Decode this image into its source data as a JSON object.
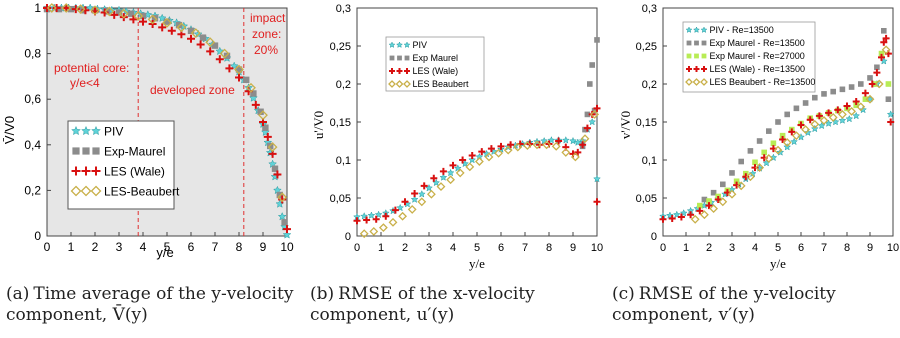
{
  "colors": {
    "piv": "#5fd3d8",
    "exp": "#8c8c8c",
    "exp27": "#b8ec55",
    "les": "#d81010",
    "beau": "#c9b04a",
    "zone_text": "#e02020",
    "zone_line": "#e03030",
    "panel_bg_a": "#e6e6e6"
  },
  "captions": [
    {
      "label": "(a)",
      "text": "Time average of the y-velocity component, V̄(y)"
    },
    {
      "label": "(b)",
      "text": "RMSE of the x-velocity component, u′(y)"
    },
    {
      "label": "(c)",
      "text": "RMSE of the y-velocity component, v′(y)"
    }
  ],
  "chart_data": [
    {
      "type": "scatter",
      "xlabel": "y/e",
      "ylabel": "V̄/V0",
      "xlim": [
        0,
        10
      ],
      "ylim": [
        0,
        1
      ],
      "xticks": [
        "0",
        "1",
        "2",
        "3",
        "4",
        "5",
        "6",
        "7",
        "8",
        "9",
        "10"
      ],
      "yticks": [
        "0",
        "0,2",
        "0,4",
        "0,6",
        "0,8",
        "1"
      ],
      "grid": false,
      "legend": "bottom-left",
      "annotations": [
        "potential core:",
        "y/e<4",
        "developed zone",
        "impact",
        "zone:",
        "20%"
      ],
      "zone_lines_x": [
        3.8,
        8.2
      ],
      "series": [
        {
          "name": "PIV",
          "marker": "star",
          "color": "piv",
          "x": [
            0,
            0.3,
            0.6,
            0.9,
            1.2,
            1.5,
            1.8,
            2.1,
            2.4,
            2.7,
            3.0,
            3.3,
            3.6,
            3.9,
            4.2,
            4.5,
            4.8,
            5.1,
            5.4,
            5.7,
            6.0,
            6.3,
            6.6,
            6.9,
            7.2,
            7.5,
            7.8,
            8.0,
            8.2,
            8.4,
            8.6,
            8.8,
            9.0,
            9.1,
            9.2,
            9.3,
            9.4,
            9.5,
            9.6,
            9.7,
            9.8,
            9.9,
            10.0
          ],
          "y": [
            1,
            1,
            1,
            1,
            1,
            1,
            1,
            0.995,
            0.993,
            0.99,
            0.99,
            0.985,
            0.98,
            0.975,
            0.97,
            0.965,
            0.955,
            0.945,
            0.935,
            0.92,
            0.905,
            0.885,
            0.865,
            0.84,
            0.81,
            0.78,
            0.745,
            0.72,
            0.685,
            0.65,
            0.605,
            0.55,
            0.49,
            0.455,
            0.41,
            0.365,
            0.315,
            0.26,
            0.2,
            0.14,
            0.085,
            0.04,
            0.005
          ]
        },
        {
          "name": "Exp-Maurel",
          "marker": "square",
          "color": "exp",
          "x": [
            0,
            0.5,
            1.0,
            1.5,
            2.0,
            2.5,
            3.0,
            3.5,
            4.0,
            4.5,
            5.0,
            5.5,
            6.0,
            6.5,
            7.0,
            7.5,
            8.0,
            8.3,
            8.6,
            8.9,
            9.1,
            9.3,
            9.5,
            9.7,
            9.9
          ],
          "y": [
            0.995,
            0.995,
            0.995,
            0.99,
            0.99,
            0.985,
            0.98,
            0.975,
            0.965,
            0.955,
            0.94,
            0.925,
            0.9,
            0.87,
            0.835,
            0.79,
            0.73,
            0.685,
            0.625,
            0.545,
            0.475,
            0.395,
            0.295,
            0.18,
            0.06
          ]
        },
        {
          "name": "LES (Wale)",
          "marker": "cross",
          "color": "les",
          "x": [
            0,
            0.4,
            0.8,
            1.2,
            1.6,
            2.0,
            2.4,
            2.8,
            3.2,
            3.6,
            4.0,
            4.4,
            4.8,
            5.2,
            5.6,
            6.0,
            6.4,
            6.8,
            7.2,
            7.6,
            8.0,
            8.4,
            8.7,
            9.0,
            9.2,
            9.4,
            9.6,
            9.8,
            10.0
          ],
          "y": [
            1,
            1,
            1,
            0.995,
            0.99,
            0.985,
            0.98,
            0.97,
            0.96,
            0.95,
            0.94,
            0.93,
            0.915,
            0.9,
            0.885,
            0.865,
            0.84,
            0.81,
            0.775,
            0.735,
            0.695,
            0.635,
            0.575,
            0.5,
            0.435,
            0.36,
            0.27,
            0.16,
            0.03
          ]
        },
        {
          "name": "LES-Beaubert",
          "marker": "diamond",
          "color": "beau",
          "x": [
            0.2,
            0.8,
            1.4,
            2.0,
            2.6,
            3.2,
            3.8,
            4.4,
            5.0,
            5.6,
            6.2,
            6.8,
            7.4,
            8.0,
            8.5,
            9.0,
            9.4,
            9.8
          ],
          "y": [
            1,
            1,
            0.995,
            0.99,
            0.985,
            0.975,
            0.965,
            0.95,
            0.935,
            0.915,
            0.89,
            0.85,
            0.8,
            0.73,
            0.65,
            0.53,
            0.39,
            0.17
          ]
        }
      ]
    },
    {
      "type": "scatter",
      "xlabel": "y/e",
      "ylabel": "u'/V0",
      "xlim": [
        0,
        10
      ],
      "ylim": [
        0,
        0.3
      ],
      "xticks": [
        "0",
        "1",
        "2",
        "3",
        "4",
        "5",
        "6",
        "7",
        "8",
        "9",
        "10"
      ],
      "yticks": [
        "0",
        "0,05",
        "0,1",
        "0,15",
        "0,2",
        "0,25",
        "0,3"
      ],
      "grid": false,
      "legend": "top-left",
      "series": [
        {
          "name": "PIV",
          "marker": "star",
          "color": "piv",
          "x": [
            0,
            0.3,
            0.6,
            0.9,
            1.2,
            1.5,
            1.8,
            2.1,
            2.4,
            2.7,
            3.0,
            3.3,
            3.6,
            3.9,
            4.2,
            4.5,
            4.8,
            5.1,
            5.4,
            5.7,
            6.0,
            6.3,
            6.6,
            6.9,
            7.2,
            7.5,
            7.8,
            8.1,
            8.4,
            8.7,
            9.0,
            9.2,
            9.4,
            9.6,
            9.8,
            10.0
          ],
          "y": [
            0.025,
            0.026,
            0.027,
            0.028,
            0.03,
            0.033,
            0.037,
            0.042,
            0.048,
            0.055,
            0.063,
            0.07,
            0.077,
            0.083,
            0.089,
            0.095,
            0.1,
            0.104,
            0.108,
            0.111,
            0.114,
            0.117,
            0.119,
            0.121,
            0.123,
            0.124,
            0.125,
            0.126,
            0.126,
            0.126,
            0.125,
            0.123,
            0.125,
            0.14,
            0.15,
            0.075
          ]
        },
        {
          "name": "Exp Maurel",
          "marker": "square",
          "color": "exp",
          "x": [
            9.4,
            9.5,
            9.6,
            9.7,
            9.8,
            9.9,
            10.0
          ],
          "y": [
            0.118,
            0.14,
            0.16,
            0.2,
            0.225,
            0.165,
            0.258
          ]
        },
        {
          "name": "LES (Wale)",
          "marker": "cross",
          "color": "les",
          "x": [
            0,
            0.4,
            0.8,
            1.2,
            1.6,
            2.0,
            2.4,
            2.8,
            3.2,
            3.6,
            4.0,
            4.4,
            4.8,
            5.2,
            5.6,
            6.0,
            6.4,
            6.8,
            7.2,
            7.6,
            8.0,
            8.4,
            8.7,
            9.0,
            9.2,
            9.4,
            9.6,
            9.8,
            10.0,
            10.0
          ],
          "y": [
            0.02,
            0.021,
            0.022,
            0.026,
            0.034,
            0.045,
            0.056,
            0.066,
            0.076,
            0.085,
            0.093,
            0.1,
            0.106,
            0.111,
            0.115,
            0.118,
            0.12,
            0.121,
            0.121,
            0.12,
            0.121,
            0.125,
            0.117,
            0.108,
            0.11,
            0.12,
            0.142,
            0.16,
            0.168,
            0.045
          ]
        },
        {
          "name": "LES Beaubert",
          "marker": "diamond",
          "color": "beau",
          "x": [
            0.3,
            0.7,
            1.1,
            1.5,
            1.9,
            2.3,
            2.7,
            3.1,
            3.5,
            3.9,
            4.3,
            4.7,
            5.1,
            5.5,
            5.9,
            6.3,
            6.7,
            7.1,
            7.5,
            7.9,
            8.3,
            8.7,
            9.1,
            9.5,
            9.9
          ],
          "y": [
            0.003,
            0.006,
            0.011,
            0.018,
            0.026,
            0.035,
            0.045,
            0.055,
            0.065,
            0.074,
            0.083,
            0.091,
            0.098,
            0.104,
            0.109,
            0.113,
            0.117,
            0.119,
            0.12,
            0.12,
            0.118,
            0.11,
            0.104,
            0.128,
            0.16
          ]
        }
      ]
    },
    {
      "type": "scatter",
      "xlabel": "y/e",
      "ylabel": "v'/V0",
      "xlim": [
        0,
        10
      ],
      "ylim": [
        0,
        0.3
      ],
      "xticks": [
        "0",
        "1",
        "2",
        "3",
        "4",
        "5",
        "6",
        "7",
        "8",
        "9",
        "10"
      ],
      "yticks": [
        "0",
        "0,05",
        "0,1",
        "0,15",
        "0,2",
        "0,25",
        "0,3"
      ],
      "grid": false,
      "legend": "top-left",
      "series": [
        {
          "name": "PIV - Re=13500",
          "marker": "star",
          "color": "piv",
          "x": [
            0,
            0.3,
            0.6,
            0.9,
            1.2,
            1.5,
            1.8,
            2.1,
            2.4,
            2.7,
            3.0,
            3.3,
            3.6,
            3.9,
            4.2,
            4.5,
            4.8,
            5.1,
            5.4,
            5.7,
            6.0,
            6.3,
            6.6,
            6.9,
            7.2,
            7.5,
            7.8,
            8.1,
            8.4,
            8.7,
            9.0,
            9.3,
            9.6,
            9.9
          ],
          "y": [
            0.026,
            0.027,
            0.028,
            0.03,
            0.033,
            0.036,
            0.04,
            0.044,
            0.049,
            0.055,
            0.061,
            0.068,
            0.075,
            0.082,
            0.089,
            0.096,
            0.103,
            0.11,
            0.117,
            0.124,
            0.13,
            0.136,
            0.141,
            0.145,
            0.148,
            0.15,
            0.152,
            0.154,
            0.158,
            0.166,
            0.18,
            0.2,
            0.23,
            0.16
          ]
        },
        {
          "name": "Exp Maurel - Re=13500",
          "marker": "square",
          "color": "exp",
          "x": [
            1.8,
            2.2,
            2.6,
            3.0,
            3.4,
            3.8,
            4.2,
            4.6,
            5.0,
            5.4,
            5.8,
            6.2,
            6.6,
            7.0,
            7.4,
            7.8,
            8.2,
            8.6,
            9.0,
            9.3,
            9.6,
            9.8
          ],
          "y": [
            0.048,
            0.057,
            0.068,
            0.083,
            0.098,
            0.112,
            0.125,
            0.138,
            0.15,
            0.16,
            0.168,
            0.175,
            0.182,
            0.187,
            0.19,
            0.193,
            0.196,
            0.2,
            0.208,
            0.222,
            0.27,
            0.18
          ]
        },
        {
          "name": "Exp Maurel - Re=27000",
          "marker": "square",
          "color": "exp27",
          "x": [
            1.6,
            2.0,
            2.4,
            2.8,
            3.2,
            3.6,
            4.0,
            4.4,
            4.8,
            5.2,
            5.6,
            6.0,
            6.4,
            6.8,
            7.2,
            7.6,
            8.0,
            8.4,
            8.8,
            9.2,
            9.5,
            9.8
          ],
          "y": [
            0.04,
            0.046,
            0.052,
            0.06,
            0.072,
            0.082,
            0.097,
            0.11,
            0.122,
            0.132,
            0.14,
            0.148,
            0.155,
            0.158,
            0.162,
            0.165,
            0.168,
            0.172,
            0.18,
            0.2,
            0.24,
            0.2
          ]
        },
        {
          "name": "LES (Wale) - Re=13500",
          "marker": "cross",
          "color": "les",
          "x": [
            0,
            0.4,
            0.8,
            1.2,
            1.6,
            2.0,
            2.4,
            2.8,
            3.2,
            3.6,
            4.0,
            4.4,
            4.8,
            5.2,
            5.6,
            6.0,
            6.4,
            6.8,
            7.2,
            7.6,
            8.0,
            8.4,
            8.8,
            9.1,
            9.3,
            9.5,
            9.6,
            9.7,
            9.8,
            9.9
          ],
          "y": [
            0.022,
            0.023,
            0.025,
            0.028,
            0.033,
            0.04,
            0.048,
            0.057,
            0.067,
            0.078,
            0.09,
            0.103,
            0.115,
            0.127,
            0.137,
            0.146,
            0.153,
            0.158,
            0.162,
            0.166,
            0.171,
            0.177,
            0.188,
            0.2,
            0.215,
            0.235,
            0.255,
            0.26,
            0.24,
            0.15
          ]
        },
        {
          "name": "LES Beaubert - Re=13500",
          "marker": "diamond",
          "color": "beau",
          "x": [
            1.4,
            1.8,
            2.2,
            2.6,
            3.0,
            3.4,
            3.8,
            4.2,
            4.6,
            5.0,
            5.4,
            5.8,
            6.2,
            6.6,
            7.0,
            7.4,
            7.8,
            8.2,
            8.6,
            9.0,
            9.4,
            9.7
          ],
          "y": [
            0.022,
            0.028,
            0.036,
            0.045,
            0.055,
            0.066,
            0.078,
            0.09,
            0.102,
            0.113,
            0.123,
            0.132,
            0.14,
            0.147,
            0.152,
            0.156,
            0.16,
            0.164,
            0.17,
            0.18,
            0.2,
            0.245
          ]
        }
      ]
    }
  ]
}
